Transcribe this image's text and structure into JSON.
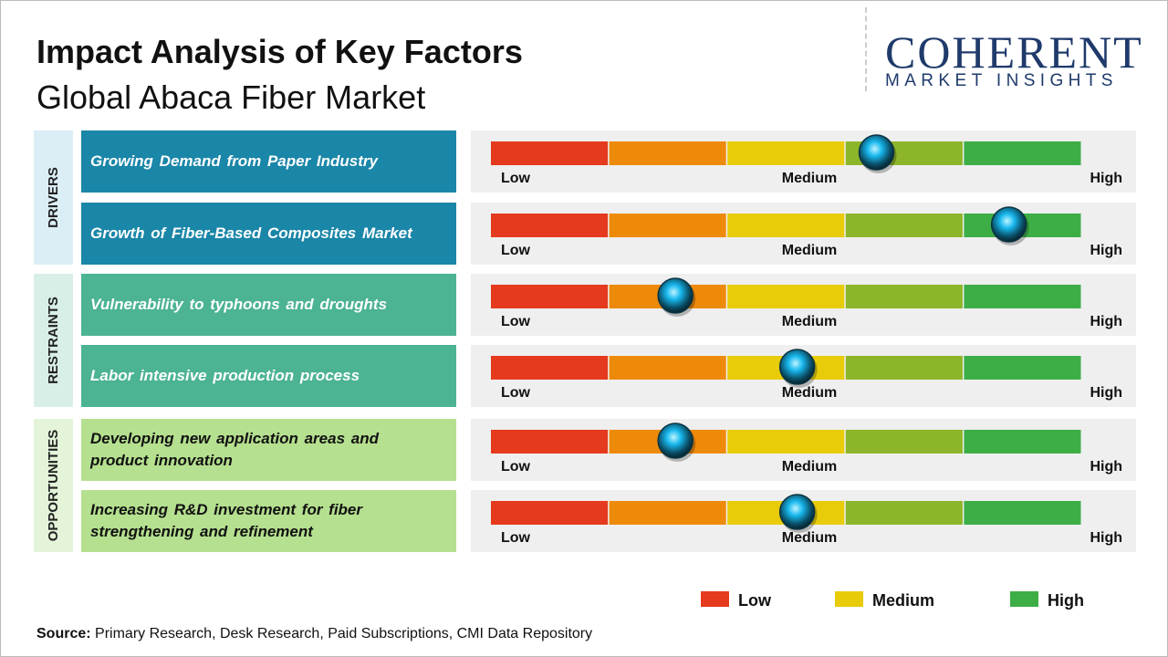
{
  "header": {
    "title": "Impact Analysis of Key Factors",
    "subtitle": "Global Abaca Fiber Market"
  },
  "logo": {
    "name": "COHERENT",
    "tagline": "MARKET INSIGHTS"
  },
  "scale": {
    "low": "Low",
    "medium": "Medium",
    "high": "High",
    "impact_range": [
      0,
      5
    ],
    "segment_colors": [
      "#e53a1e",
      "#ee8a0a",
      "#e8cc0a",
      "#8db52a",
      "#3dae46"
    ]
  },
  "groups": [
    {
      "label": "DRIVERS",
      "color": "#1a86a8",
      "text_color": "#ffffff",
      "band_color": "#dbeef6",
      "factors": [
        {
          "text": "Growing Demand from Paper Industry",
          "impact": 3.26
        },
        {
          "text": "Growth of Fiber-Based Composites Market",
          "impact": 4.38
        }
      ]
    },
    {
      "label": "RESTRAINTS",
      "color": "#4cb394",
      "text_color": "#ffffff",
      "band_color": "#d8efe8",
      "factors": [
        {
          "text": "Vulnerability to typhoons and droughts",
          "impact": 1.56
        },
        {
          "text": "Labor intensive production process",
          "impact": 2.59
        }
      ]
    },
    {
      "label": "OPPORTUNITIES",
      "color": "#b5e08f",
      "text_color": "#111111",
      "band_color": "#e3f4d9",
      "factors": [
        {
          "text": "Developing new application areas and product innovation",
          "impact": 1.56
        },
        {
          "text": "Increasing R&D investment for fiber strengthening and refinement",
          "impact": 2.59
        }
      ]
    }
  ],
  "legend": [
    {
      "label": "Low",
      "color": "#e53a1e"
    },
    {
      "label": "Medium",
      "color": "#e8cc0a"
    },
    {
      "label": "High",
      "color": "#3dae46"
    }
  ],
  "source": {
    "label": "Source:",
    "text": "Primary Research, Desk Research, Paid Subscriptions, CMI Data Repository"
  }
}
